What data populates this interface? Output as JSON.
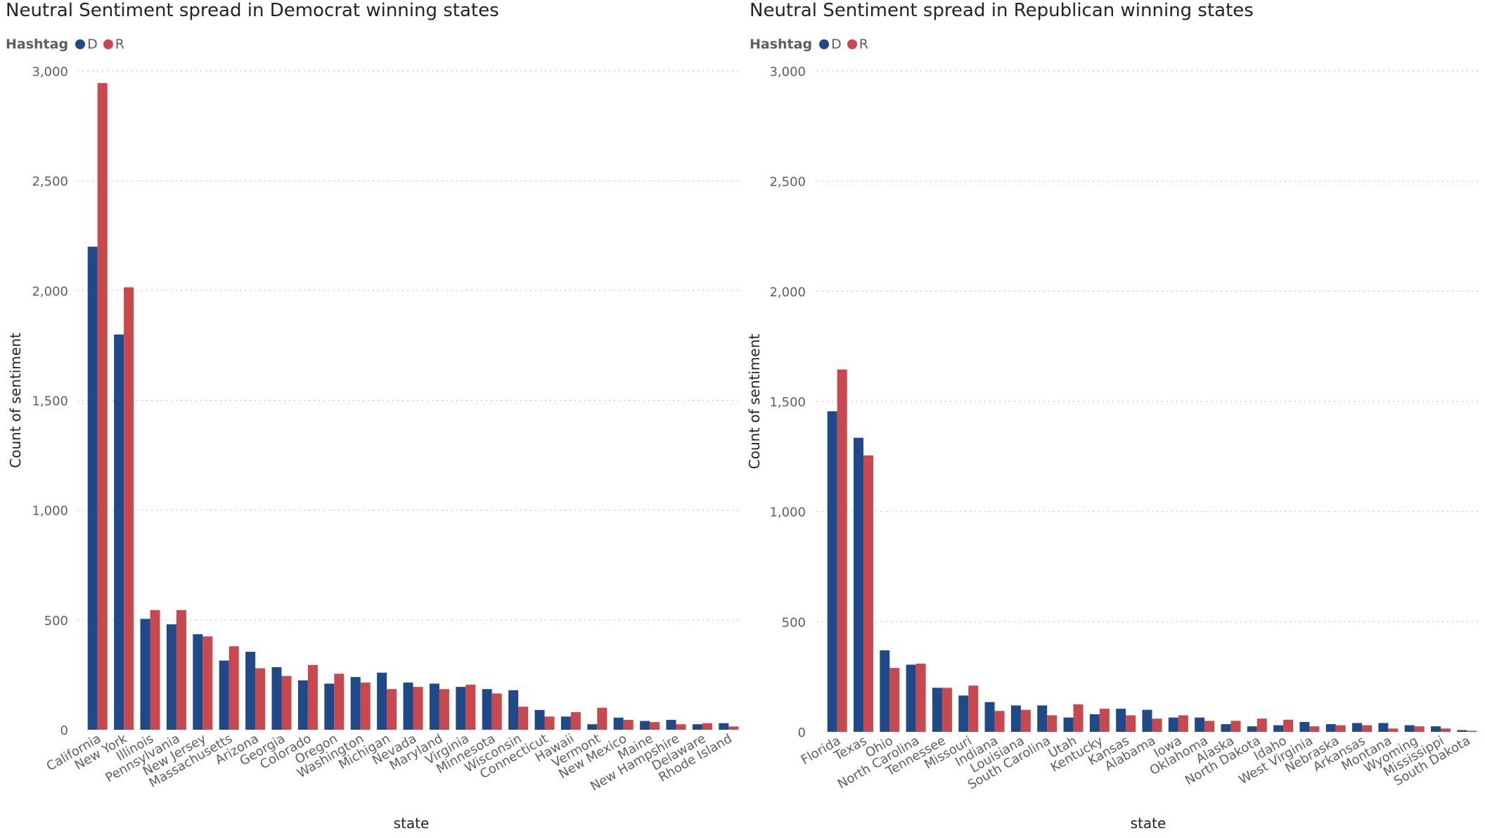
{
  "colors": {
    "D": "#1f4a8a",
    "R": "#c9484e",
    "grid": "#c8c6c4",
    "text": "#605e5c",
    "axis_title": "#252423"
  },
  "chart_data": [
    {
      "type": "bar",
      "title": "Neutral Sentiment spread in Democrat winning states",
      "xlabel": "state",
      "ylabel": "Count of sentiment",
      "ylim": [
        0,
        3000
      ],
      "yticks": [
        0,
        500,
        1000,
        1500,
        2000,
        2500,
        3000
      ],
      "ytick_labels": [
        "0",
        "500",
        "1,000",
        "1,500",
        "2,000",
        "2,500",
        "3,000"
      ],
      "grid": true,
      "legend": {
        "title": "Hashtag",
        "placement": "top-left"
      },
      "categories": [
        "California",
        "New York",
        "Illinois",
        "Pennsylvania",
        "New Jersey",
        "Massachusetts",
        "Arizona",
        "Georgia",
        "Colorado",
        "Oregon",
        "Washington",
        "Michigan",
        "Nevada",
        "Maryland",
        "Virginia",
        "Minnesota",
        "Wisconsin",
        "Connecticut",
        "Hawaii",
        "Vermont",
        "New Mexico",
        "Maine",
        "New Hampshire",
        "Delaware",
        "Rhode Island"
      ],
      "series": [
        {
          "name": "D",
          "values": [
            2200,
            1800,
            505,
            480,
            435,
            315,
            355,
            285,
            225,
            210,
            240,
            260,
            215,
            210,
            195,
            185,
            180,
            90,
            60,
            25,
            55,
            40,
            45,
            25,
            30
          ]
        },
        {
          "name": "R",
          "values": [
            2945,
            2015,
            545,
            545,
            425,
            380,
            280,
            245,
            295,
            255,
            215,
            185,
            195,
            185,
            205,
            165,
            105,
            60,
            80,
            100,
            45,
            35,
            25,
            30,
            15
          ]
        }
      ]
    },
    {
      "type": "bar",
      "title": "Neutral Sentiment spread in Republican winning states",
      "xlabel": "state",
      "ylabel": "Count of sentiment",
      "ylim": [
        0,
        3000
      ],
      "yticks": [
        0,
        500,
        1000,
        1500,
        2000,
        2500,
        3000
      ],
      "ytick_labels": [
        "0",
        "500",
        "1,000",
        "1,500",
        "2,000",
        "2,500",
        "3,000"
      ],
      "grid": true,
      "legend": {
        "title": "Hashtag",
        "placement": "top-left"
      },
      "categories": [
        "Florida",
        "Texas",
        "Ohio",
        "North Carolina",
        "Tennessee",
        "Missouri",
        "Indiana",
        "Louisiana",
        "South Carolina",
        "Utah",
        "Kentucky",
        "Kansas",
        "Alabama",
        "Iowa",
        "Oklahoma",
        "Alaska",
        "North Dakota",
        "Idaho",
        "West Virginia",
        "Nebraska",
        "Arkansas",
        "Montana",
        "Wyoming",
        "Mississippi",
        "South Dakota"
      ],
      "series": [
        {
          "name": "D",
          "values": [
            1455,
            1335,
            370,
            305,
            200,
            165,
            135,
            120,
            120,
            65,
            80,
            105,
            100,
            65,
            65,
            35,
            25,
            30,
            45,
            35,
            40,
            40,
            30,
            25,
            8
          ]
        },
        {
          "name": "R",
          "values": [
            1645,
            1255,
            290,
            310,
            200,
            210,
            95,
            100,
            75,
            125,
            105,
            75,
            60,
            75,
            50,
            50,
            60,
            55,
            25,
            30,
            30,
            15,
            25,
            15,
            5
          ]
        }
      ]
    }
  ]
}
